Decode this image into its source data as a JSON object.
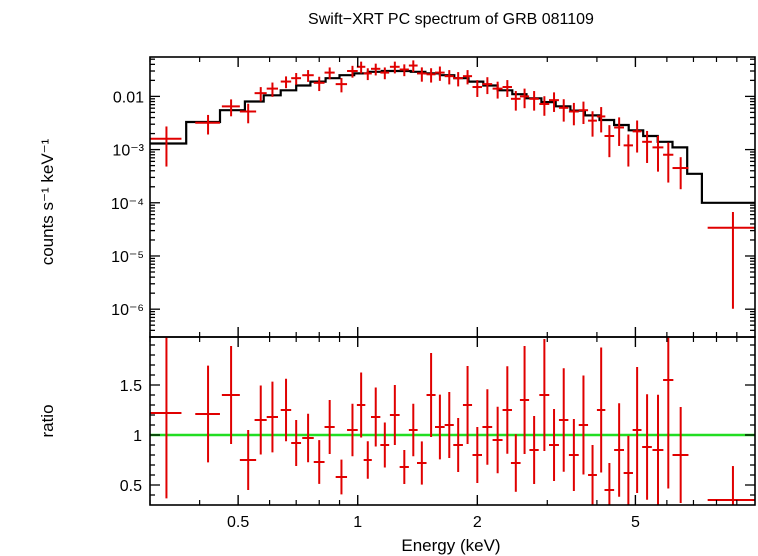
{
  "chart_data": [
    {
      "type": "scatter",
      "panel": "spectrum",
      "title": "Swift−XRT PC spectrum of GRB 081109",
      "xlabel": "",
      "ylabel": "counts s⁻¹ keV⁻¹",
      "x_scale": "log",
      "y_scale": "log",
      "xlim": [
        0.3,
        10
      ],
      "ylim": [
        3e-07,
        0.055
      ],
      "y_tick_labels": [
        {
          "value": 0.01,
          "label": "0.01"
        },
        {
          "value": 0.001,
          "label": "10⁻³"
        },
        {
          "value": 0.0001,
          "label": "10⁻⁴"
        },
        {
          "value": 1e-05,
          "label": "10⁻⁵"
        },
        {
          "value": 1e-06,
          "label": "10⁻⁶"
        }
      ],
      "data_color": "#e00000",
      "model_color": "#000000",
      "data": {
        "x": [
          0.33,
          0.42,
          0.48,
          0.53,
          0.57,
          0.61,
          0.66,
          0.7,
          0.75,
          0.8,
          0.85,
          0.91,
          0.97,
          1.02,
          1.06,
          1.11,
          1.17,
          1.24,
          1.31,
          1.38,
          1.45,
          1.53,
          1.61,
          1.7,
          1.79,
          1.89,
          2.0,
          2.12,
          2.25,
          2.38,
          2.5,
          2.63,
          2.78,
          2.95,
          3.12,
          3.3,
          3.5,
          3.7,
          3.9,
          4.1,
          4.3,
          4.55,
          4.8,
          5.05,
          5.35,
          5.7,
          6.05,
          6.5,
          8.8
        ],
        "y": [
          0.0016,
          0.0032,
          0.0065,
          0.0052,
          0.0115,
          0.014,
          0.019,
          0.022,
          0.025,
          0.018,
          0.028,
          0.017,
          0.03,
          0.036,
          0.027,
          0.033,
          0.028,
          0.036,
          0.032,
          0.038,
          0.027,
          0.026,
          0.028,
          0.024,
          0.022,
          0.024,
          0.015,
          0.017,
          0.014,
          0.015,
          0.009,
          0.01,
          0.009,
          0.0072,
          0.0085,
          0.0061,
          0.0052,
          0.0055,
          0.0035,
          0.0042,
          0.0018,
          0.0026,
          0.0012,
          0.0022,
          0.0014,
          0.0011,
          0.0008,
          0.00045,
          3.4e-05
        ],
        "xerr": [
          0.03,
          0.03,
          0.025,
          0.025,
          0.02,
          0.02,
          0.02,
          0.02,
          0.025,
          0.025,
          0.025,
          0.03,
          0.03,
          0.025,
          0.025,
          0.03,
          0.03,
          0.035,
          0.035,
          0.035,
          0.04,
          0.04,
          0.045,
          0.045,
          0.05,
          0.05,
          0.055,
          0.06,
          0.065,
          0.065,
          0.07,
          0.07,
          0.075,
          0.085,
          0.09,
          0.09,
          0.1,
          0.1,
          0.1,
          0.1,
          0.12,
          0.13,
          0.13,
          0.13,
          0.15,
          0.18,
          0.18,
          0.3,
          1.2
        ],
        "yerr_rel": [
          0.7,
          0.4,
          0.35,
          0.4,
          0.3,
          0.3,
          0.25,
          0.25,
          0.25,
          0.3,
          0.25,
          0.3,
          0.25,
          0.25,
          0.25,
          0.25,
          0.25,
          0.25,
          0.25,
          0.25,
          0.3,
          0.3,
          0.3,
          0.3,
          0.3,
          0.3,
          0.35,
          0.35,
          0.35,
          0.35,
          0.4,
          0.4,
          0.4,
          0.4,
          0.4,
          0.45,
          0.45,
          0.45,
          0.5,
          0.5,
          0.6,
          0.55,
          0.6,
          0.6,
          0.6,
          0.65,
          0.7,
          0.6,
          0.97
        ]
      },
      "model_steps": {
        "edges": [
          0.3,
          0.37,
          0.45,
          0.52,
          0.58,
          0.64,
          0.7,
          0.76,
          0.83,
          0.9,
          0.98,
          1.06,
          1.15,
          1.25,
          1.36,
          1.48,
          1.61,
          1.75,
          1.9,
          2.07,
          2.25,
          2.45,
          2.66,
          2.9,
          3.15,
          3.43,
          3.73,
          4.06,
          4.42,
          4.81,
          5.23,
          5.69,
          6.2,
          6.75,
          7.35,
          10.0
        ],
        "values": [
          0.0013,
          0.0033,
          0.0055,
          0.008,
          0.0105,
          0.013,
          0.016,
          0.019,
          0.022,
          0.025,
          0.027,
          0.029,
          0.03,
          0.03,
          0.029,
          0.027,
          0.025,
          0.022,
          0.019,
          0.016,
          0.013,
          0.011,
          0.0092,
          0.0078,
          0.0065,
          0.0054,
          0.0044,
          0.0036,
          0.0029,
          0.0023,
          0.0018,
          0.0014,
          0.0011,
          0.00035,
          0.0001
        ]
      }
    },
    {
      "type": "scatter",
      "panel": "ratio",
      "title": "",
      "xlabel": "Energy (keV)",
      "ylabel": "ratio",
      "x_scale": "log",
      "y_scale": "linear",
      "xlim": [
        0.3,
        10
      ],
      "ylim": [
        0.3,
        1.98
      ],
      "x_tick_labels": [
        {
          "value": 0.5,
          "label": "0.5"
        },
        {
          "value": 1,
          "label": "1"
        },
        {
          "value": 2,
          "label": "2"
        },
        {
          "value": 5,
          "label": "5"
        }
      ],
      "y_tick_labels": [
        {
          "value": 0.5,
          "label": "0.5"
        },
        {
          "value": 1,
          "label": "1"
        },
        {
          "value": 1.5,
          "label": "1.5"
        }
      ],
      "reference_line": {
        "y": 1,
        "color": "#22dd22"
      },
      "data_color": "#e00000",
      "data": {
        "x": [
          0.33,
          0.42,
          0.48,
          0.53,
          0.57,
          0.61,
          0.66,
          0.7,
          0.75,
          0.8,
          0.85,
          0.91,
          0.97,
          1.02,
          1.06,
          1.11,
          1.17,
          1.24,
          1.31,
          1.38,
          1.45,
          1.53,
          1.61,
          1.7,
          1.79,
          1.89,
          2.0,
          2.12,
          2.25,
          2.38,
          2.5,
          2.63,
          2.78,
          2.95,
          3.12,
          3.3,
          3.5,
          3.7,
          3.9,
          4.1,
          4.3,
          4.55,
          4.8,
          5.05,
          5.35,
          5.7,
          6.05,
          6.5,
          8.8
        ],
        "y": [
          1.22,
          1.21,
          1.4,
          0.75,
          1.15,
          1.18,
          1.25,
          0.92,
          0.97,
          0.73,
          1.08,
          0.58,
          1.05,
          1.3,
          0.75,
          1.18,
          0.9,
          1.2,
          0.68,
          1.05,
          0.72,
          1.4,
          1.08,
          1.1,
          0.9,
          1.3,
          0.8,
          1.08,
          0.95,
          1.25,
          0.72,
          1.35,
          0.85,
          1.4,
          0.9,
          1.15,
          0.8,
          1.1,
          0.6,
          1.25,
          0.45,
          0.85,
          0.62,
          1.05,
          0.88,
          0.85,
          1.55,
          0.8,
          0.35
        ]
      }
    }
  ]
}
